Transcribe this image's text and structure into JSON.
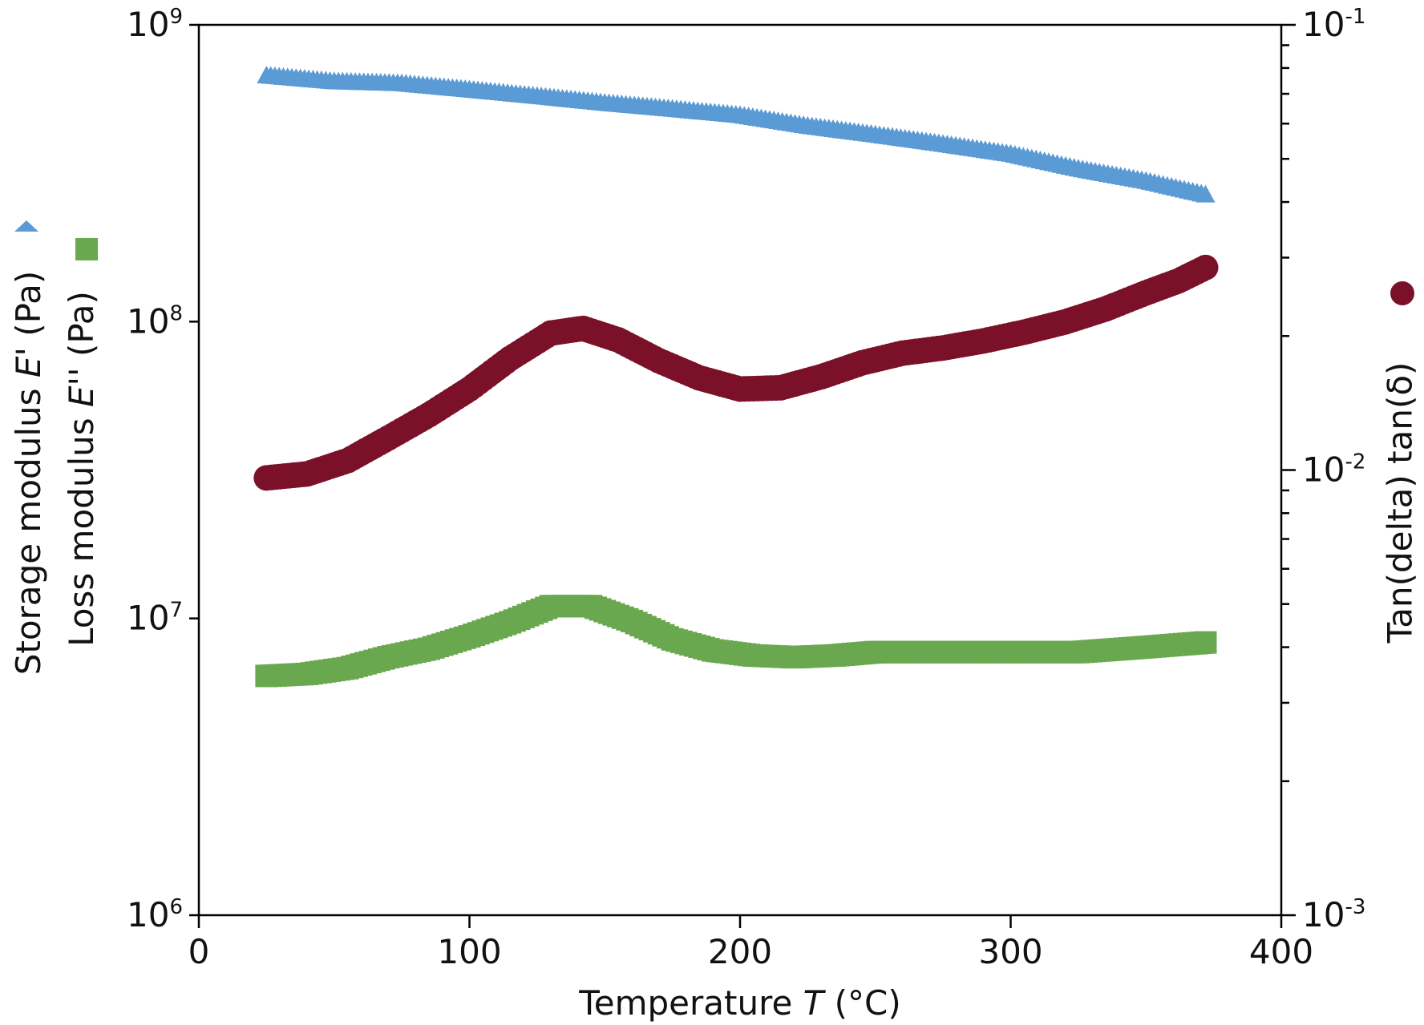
{
  "chart_data": {
    "type": "scatter",
    "xlabel": "Temperature T (°C)",
    "ylabel_left_1": "Storage modulus E' (Pa)",
    "ylabel_left_2": "Loss modulus E'' (Pa)",
    "ylabel_right": "Tan(delta) tan(δ)",
    "xlim": [
      0,
      400
    ],
    "ylim_left": [
      1000000,
      1000000000
    ],
    "ylim_right": [
      0.001,
      0.1
    ],
    "yscale_left": "log",
    "yscale_right": "log",
    "x_ticks": [
      {
        "value": 0,
        "label": "0"
      },
      {
        "value": 100,
        "label": "100"
      },
      {
        "value": 200,
        "label": "200"
      },
      {
        "value": 300,
        "label": "300"
      },
      {
        "value": 400,
        "label": "400"
      }
    ],
    "y_left_ticks": [
      {
        "value": 1000000,
        "base": "10",
        "exp": "6"
      },
      {
        "value": 10000000,
        "base": "10",
        "exp": "7"
      },
      {
        "value": 100000000,
        "base": "10",
        "exp": "8"
      },
      {
        "value": 1000000000,
        "base": "10",
        "exp": "9"
      }
    ],
    "y_right_ticks": [
      {
        "value": 0.001,
        "base": "10",
        "exp": "-3"
      },
      {
        "value": 0.01,
        "base": "10",
        "exp": "-2"
      },
      {
        "value": 0.1,
        "base": "10",
        "exp": "-1"
      }
    ],
    "grid": false,
    "series": [
      {
        "axis": "left",
        "marker": "triangle",
        "color": "#5a9bd5",
        "points": [
          [
            25,
            680000000
          ],
          [
            50,
            650000000
          ],
          [
            75,
            640000000
          ],
          [
            100,
            610000000
          ],
          [
            125,
            580000000
          ],
          [
            150,
            550000000
          ],
          [
            175,
            525000000
          ],
          [
            200,
            500000000
          ],
          [
            225,
            460000000
          ],
          [
            250,
            430000000
          ],
          [
            275,
            400000000
          ],
          [
            300,
            370000000
          ],
          [
            325,
            330000000
          ],
          [
            350,
            300000000
          ],
          [
            372,
            270000000
          ]
        ]
      },
      {
        "axis": "left",
        "marker": "square",
        "color": "#6aa84f",
        "points": [
          [
            25,
            6400000
          ],
          [
            40,
            6500000
          ],
          [
            55,
            6800000
          ],
          [
            70,
            7400000
          ],
          [
            85,
            7900000
          ],
          [
            100,
            8700000
          ],
          [
            115,
            9700000
          ],
          [
            130,
            11000000
          ],
          [
            145,
            11000000
          ],
          [
            160,
            9800000
          ],
          [
            175,
            8500000
          ],
          [
            190,
            7800000
          ],
          [
            205,
            7500000
          ],
          [
            220,
            7400000
          ],
          [
            235,
            7500000
          ],
          [
            250,
            7700000
          ],
          [
            275,
            7700000
          ],
          [
            300,
            7700000
          ],
          [
            325,
            7700000
          ],
          [
            350,
            8000000
          ],
          [
            372,
            8300000
          ]
        ]
      },
      {
        "axis": "right",
        "marker": "circle",
        "color": "#7b1128",
        "points": [
          [
            25,
            0.0096
          ],
          [
            40,
            0.0098
          ],
          [
            55,
            0.0105
          ],
          [
            70,
            0.0118
          ],
          [
            85,
            0.0133
          ],
          [
            100,
            0.0152
          ],
          [
            115,
            0.0178
          ],
          [
            130,
            0.0203
          ],
          [
            142,
            0.0208
          ],
          [
            155,
            0.0196
          ],
          [
            170,
            0.0176
          ],
          [
            185,
            0.0161
          ],
          [
            200,
            0.0152
          ],
          [
            215,
            0.0153
          ],
          [
            230,
            0.0162
          ],
          [
            245,
            0.0174
          ],
          [
            260,
            0.0183
          ],
          [
            275,
            0.0188
          ],
          [
            290,
            0.0195
          ],
          [
            305,
            0.0204
          ],
          [
            320,
            0.0215
          ],
          [
            335,
            0.023
          ],
          [
            350,
            0.025
          ],
          [
            362,
            0.0266
          ],
          [
            372,
            0.0285
          ]
        ]
      }
    ]
  }
}
